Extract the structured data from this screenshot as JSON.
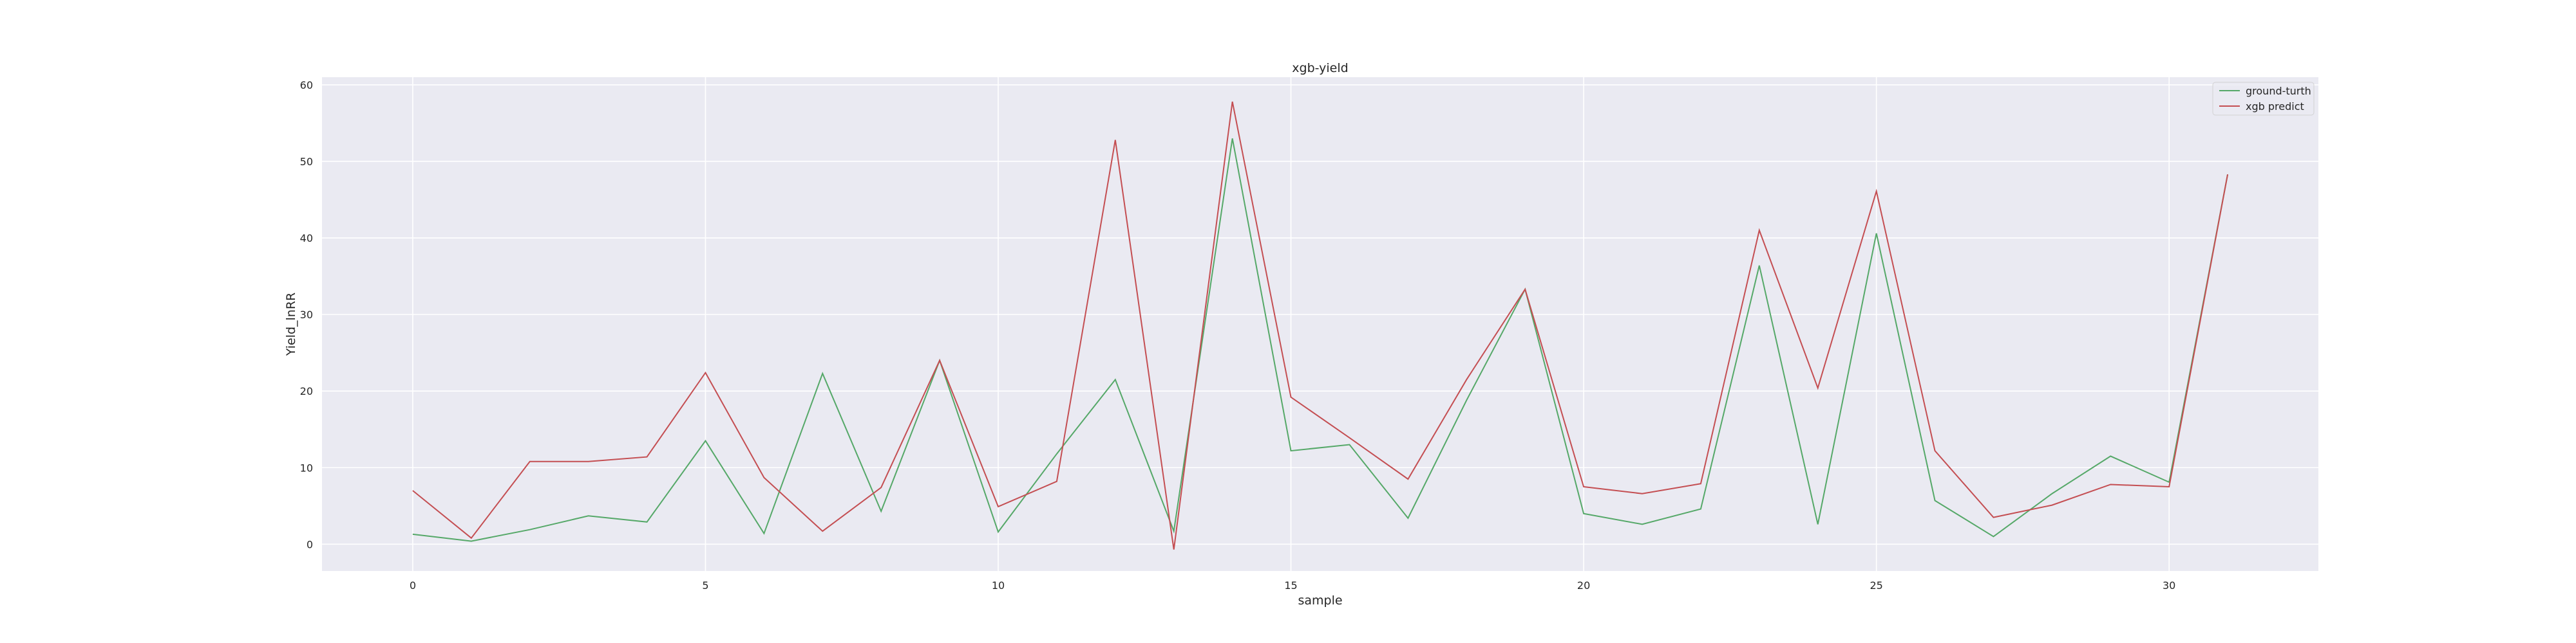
{
  "chart_data": {
    "type": "line",
    "title": "xgb-yield",
    "xlabel": "sample",
    "ylabel": "Yield_lnRR",
    "x": [
      0,
      1,
      2,
      3,
      4,
      5,
      6,
      7,
      8,
      9,
      10,
      11,
      12,
      13,
      14,
      15,
      16,
      17,
      18,
      19,
      20,
      21,
      22,
      23,
      24,
      25,
      26,
      27,
      28,
      29,
      30,
      31
    ],
    "xlim": [
      -1.55,
      32.55
    ],
    "ylim": [
      -3.5,
      61
    ],
    "xticks": [
      0,
      5,
      10,
      15,
      20,
      25,
      30
    ],
    "yticks": [
      0,
      10,
      20,
      30,
      40,
      50,
      60
    ],
    "grid": true,
    "legend_position": "top-right",
    "series": [
      {
        "name": "ground-turth",
        "color": "#55a868",
        "values": [
          1.3,
          0.4,
          1.9,
          3.7,
          2.9,
          13.5,
          1.4,
          22.3,
          4.3,
          24.0,
          1.6,
          11.8,
          21.5,
          1.7,
          53.0,
          12.2,
          13.0,
          3.4,
          18.8,
          33.3,
          4.0,
          2.6,
          4.6,
          36.4,
          2.6,
          40.6,
          5.7,
          1.0,
          6.6,
          11.5,
          8.1,
          48.3
        ]
      },
      {
        "name": "xgb predict",
        "color": "#c44e52",
        "values": [
          7.0,
          0.8,
          10.8,
          10.8,
          11.4,
          22.4,
          8.7,
          1.7,
          7.4,
          24.0,
          4.9,
          8.2,
          52.8,
          -0.7,
          57.8,
          19.2,
          13.9,
          8.5,
          21.5,
          33.3,
          7.5,
          6.6,
          7.9,
          41.0,
          20.4,
          46.1,
          12.2,
          3.5,
          5.1,
          7.8,
          7.5,
          48.3
        ]
      }
    ]
  }
}
